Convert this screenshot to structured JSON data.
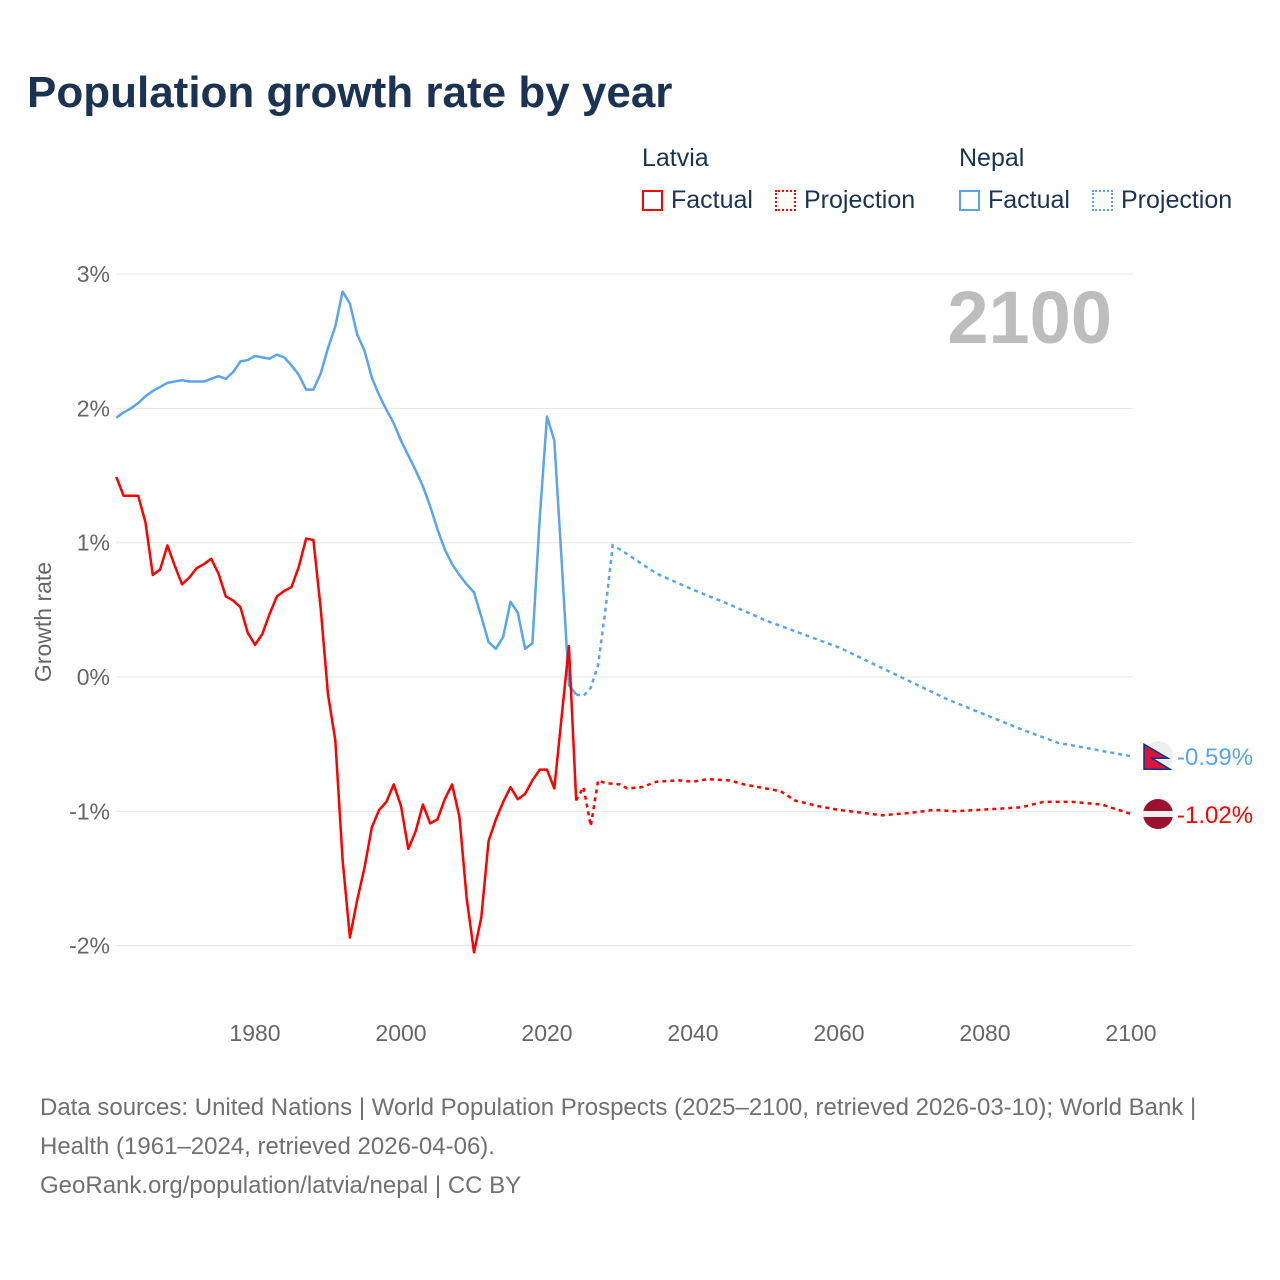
{
  "title": "Population growth rate by year",
  "legend": {
    "groups": [
      {
        "name": "Latvia",
        "factual": "Factual",
        "projection": "Projection",
        "color": "#ff0000"
      },
      {
        "name": "Nepal",
        "factual": "Factual",
        "projection": "Projection",
        "color": "#5aa5ea"
      }
    ]
  },
  "footer": {
    "sources": "Data sources: United Nations | World Population Prospects (2025–2100, retrieved 2026-03-10); World Bank | Health (1961–2024, retrieved 2026-04-06).",
    "link": "GeoRank.org/population/latvia/nepal | CC BY"
  },
  "chart_data": {
    "type": "line",
    "title": "Population growth rate by year",
    "ylabel": "Growth rate",
    "xlabel": "",
    "year_label": "2100",
    "xlim": [
      1961,
      2100
    ],
    "ylim": [
      -2.5,
      3
    ],
    "yticks": [
      3,
      2,
      1,
      0,
      -1,
      -2
    ],
    "ytick_labels": [
      "3%",
      "2%",
      "1%",
      "0%",
      "-1%",
      "-2%"
    ],
    "xticks": [
      1980,
      2000,
      2020,
      2040,
      2060,
      2080,
      2100
    ],
    "xtick_labels": [
      "1980",
      "2000",
      "2020",
      "2040",
      "2060",
      "2080",
      "2100"
    ],
    "series": [
      {
        "name": "Latvia",
        "color": "#ff0000",
        "end_label": "-1.02%",
        "factual": {
          "start": 1961,
          "values": [
            1.49,
            1.35,
            1.35,
            1.35,
            1.15,
            0.76,
            0.8,
            0.98,
            0.83,
            0.69,
            0.74,
            0.81,
            0.84,
            0.88,
            0.77,
            0.6,
            0.57,
            0.52,
            0.33,
            0.24,
            0.32,
            0.47,
            0.6,
            0.64,
            0.67,
            0.82,
            1.03,
            1.02,
            0.51,
            -0.13,
            -0.47,
            -1.36,
            -1.94,
            -1.66,
            -1.42,
            -1.12,
            -0.99,
            -0.93,
            -0.8,
            -0.96,
            -1.28,
            -1.15,
            -0.95,
            -1.09,
            -1.06,
            -0.91,
            -0.8,
            -1.04,
            -1.65,
            -2.05,
            -1.79,
            -1.22,
            -1.06,
            -0.93,
            -0.82,
            -0.91,
            -0.87,
            -0.77,
            -0.69,
            -0.69,
            -0.83,
            -0.3,
            0.23,
            -0.92
          ]
        },
        "projection": [
          [
            2024,
            -0.92
          ],
          [
            2025,
            -0.82
          ],
          [
            2026,
            -1.11
          ],
          [
            2027,
            -0.77
          ],
          [
            2028,
            -0.79
          ],
          [
            2030,
            -0.8
          ],
          [
            2031,
            -0.83
          ],
          [
            2033,
            -0.82
          ],
          [
            2035,
            -0.78
          ],
          [
            2038,
            -0.77
          ],
          [
            2040,
            -0.78
          ],
          [
            2042,
            -0.76
          ],
          [
            2045,
            -0.77
          ],
          [
            2047,
            -0.8
          ],
          [
            2050,
            -0.83
          ],
          [
            2052,
            -0.85
          ],
          [
            2054,
            -0.92
          ],
          [
            2057,
            -0.96
          ],
          [
            2060,
            -0.99
          ],
          [
            2063,
            -1.01
          ],
          [
            2066,
            -1.03
          ],
          [
            2070,
            -1.01
          ],
          [
            2073,
            -0.99
          ],
          [
            2076,
            -1.0
          ],
          [
            2079,
            -0.99
          ],
          [
            2082,
            -0.98
          ],
          [
            2085,
            -0.97
          ],
          [
            2088,
            -0.93
          ],
          [
            2092,
            -0.93
          ],
          [
            2096,
            -0.95
          ],
          [
            2100,
            -1.02
          ]
        ]
      },
      {
        "name": "Nepal",
        "color": "#5aa5ea",
        "end_label": "-0.59%",
        "factual": {
          "start": 1961,
          "values": [
            1.93,
            1.97,
            2.0,
            2.04,
            2.09,
            2.13,
            2.16,
            2.19,
            2.2,
            2.21,
            2.2,
            2.2,
            2.2,
            2.22,
            2.24,
            2.22,
            2.27,
            2.35,
            2.36,
            2.39,
            2.38,
            2.37,
            2.4,
            2.38,
            2.32,
            2.25,
            2.14,
            2.14,
            2.26,
            2.45,
            2.61,
            2.87,
            2.78,
            2.55,
            2.43,
            2.23,
            2.1,
            1.99,
            1.89,
            1.76,
            1.65,
            1.54,
            1.42,
            1.27,
            1.1,
            0.95,
            0.84,
            0.76,
            0.69,
            0.63,
            0.45,
            0.26,
            0.21,
            0.3,
            0.56,
            0.48,
            0.21,
            0.25,
            1.18,
            1.94,
            1.76,
            0.87,
            -0.06,
            -0.13
          ]
        },
        "projection": [
          [
            2024,
            -0.13
          ],
          [
            2025,
            -0.14
          ],
          [
            2026,
            -0.08
          ],
          [
            2027,
            0.09
          ],
          [
            2028,
            0.5
          ],
          [
            2029,
            0.98
          ],
          [
            2030,
            0.95
          ],
          [
            2035,
            0.77
          ],
          [
            2040,
            0.65
          ],
          [
            2045,
            0.54
          ],
          [
            2050,
            0.42
          ],
          [
            2055,
            0.32
          ],
          [
            2060,
            0.22
          ],
          [
            2065,
            0.09
          ],
          [
            2070,
            -0.04
          ],
          [
            2075,
            -0.17
          ],
          [
            2080,
            -0.28
          ],
          [
            2085,
            -0.39
          ],
          [
            2090,
            -0.49
          ],
          [
            2095,
            -0.54
          ],
          [
            2100,
            -0.59
          ]
        ]
      }
    ]
  }
}
